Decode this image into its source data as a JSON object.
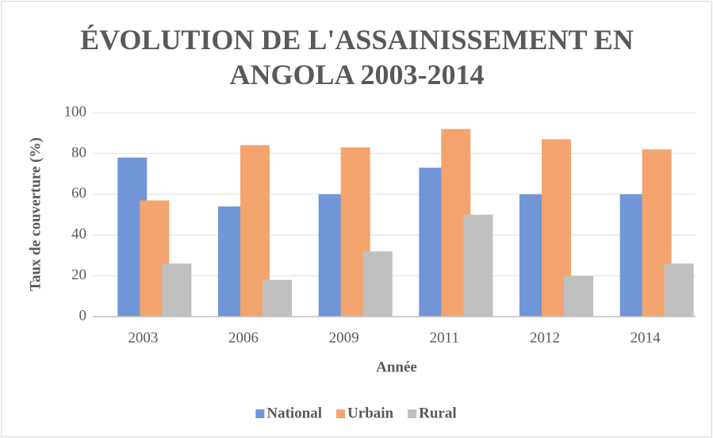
{
  "chart_data": {
    "type": "bar",
    "title": "ÉVOLUTION DE L'ASSAINISSEMENT EN ANGOLA 2003-2014",
    "x_label": "Année",
    "y_label": "Taux de couverture (%)",
    "categories": [
      "2003",
      "2006",
      "2009",
      "2011",
      "2012",
      "2014"
    ],
    "series": [
      {
        "name": "National",
        "color": "#7096d7",
        "values": [
          78,
          54,
          60,
          73,
          60,
          60
        ]
      },
      {
        "name": "Urbain",
        "color": "#f3a46e",
        "values": [
          57,
          84,
          83,
          92,
          87,
          82
        ]
      },
      {
        "name": "Rural",
        "color": "#c0c0c0",
        "values": [
          26,
          18,
          32,
          50,
          20,
          26
        ]
      }
    ],
    "ylim": [
      0,
      100
    ],
    "yticks": [
      0,
      20,
      40,
      60,
      80,
      100
    ],
    "grid": true,
    "legend": "bottom"
  }
}
